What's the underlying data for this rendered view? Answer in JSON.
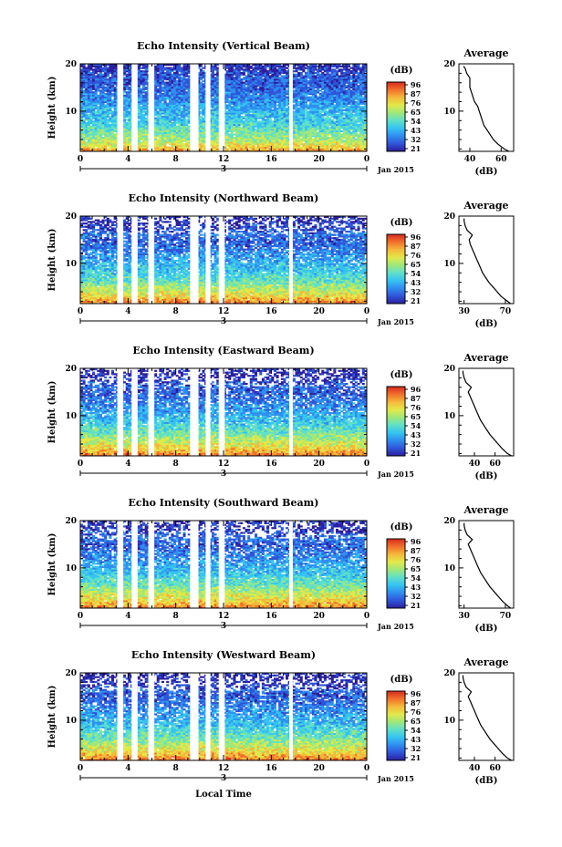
{
  "colors": {
    "colormap": [
      "#2b1f9e",
      "#2f55d8",
      "#2f8ef0",
      "#35c3f2",
      "#5fe0c8",
      "#9fe87a",
      "#e3e849",
      "#f5b83a",
      "#f1702a",
      "#d62a1e"
    ],
    "data_gap": "#ffffff",
    "profile_line": "#000000"
  },
  "shared": {
    "x_label": "Local Time",
    "date_label": "Jan 2015",
    "day_label": "3",
    "y_label": "Height (km)",
    "average_title": "Average",
    "profile_x_label": "(dB)",
    "colorbar_label": "(dB)",
    "colorbar_ticks": [
      "96",
      "87",
      "76",
      "65",
      "54",
      "43",
      "32",
      "21"
    ]
  },
  "chart_data": [
    {
      "type": "heatmap",
      "title": "Echo Intensity (Vertical Beam)",
      "xlabel": "",
      "ylabel": "Height (km)",
      "x_range": [
        0,
        24
      ],
      "x_ticks": [
        "0",
        "4",
        "8",
        "12",
        "16",
        "20",
        "0"
      ],
      "y_range": [
        1.5,
        20
      ],
      "y_ticks": [
        "10",
        "20"
      ],
      "colorbar": {
        "label": "(dB)",
        "range": [
          21,
          96
        ],
        "ticks": [
          "96",
          "87",
          "76",
          "65",
          "54",
          "43",
          "32",
          "21"
        ]
      },
      "gaps_hours": [
        [
          3.1,
          3.6
        ],
        [
          4.3,
          4.8
        ],
        [
          5.7,
          6.2
        ],
        [
          9.2,
          9.9
        ],
        [
          10.5,
          10.9
        ],
        [
          11.6,
          12.1
        ],
        [
          17.5,
          17.8
        ]
      ],
      "profile": {
        "title": "Average",
        "xlabel": "(dB)",
        "x_range": [
          33,
          68
        ],
        "x_ticks": [
          "40",
          "60"
        ],
        "y_ticks": [
          "10",
          "20"
        ],
        "height_km": [
          1.5,
          2,
          3,
          4,
          5,
          6,
          7,
          8,
          9,
          10,
          11,
          12,
          13,
          14,
          15,
          16,
          17,
          18,
          19,
          19.5
        ],
        "mean_db": [
          65,
          62,
          58,
          55,
          53,
          51,
          49,
          48,
          47,
          46,
          45,
          43,
          42,
          41,
          40,
          40,
          40,
          38,
          37,
          36
        ]
      }
    },
    {
      "type": "heatmap",
      "title": "Echo Intensity (Northward Beam)",
      "xlabel": "",
      "ylabel": "Height (km)",
      "x_range": [
        0,
        24
      ],
      "x_ticks": [
        "0",
        "4",
        "8",
        "12",
        "16",
        "20",
        "0"
      ],
      "y_range": [
        1.5,
        20
      ],
      "y_ticks": [
        "10",
        "20"
      ],
      "colorbar": {
        "label": "(dB)",
        "range": [
          21,
          96
        ],
        "ticks": [
          "96",
          "87",
          "76",
          "65",
          "54",
          "43",
          "32",
          "21"
        ]
      },
      "gaps_hours": [
        [
          3.1,
          3.6
        ],
        [
          4.3,
          4.8
        ],
        [
          5.7,
          6.2
        ],
        [
          9.2,
          9.9
        ],
        [
          10.5,
          10.9
        ],
        [
          11.6,
          12.1
        ],
        [
          17.5,
          17.8
        ]
      ],
      "profile": {
        "title": "Average",
        "xlabel": "(dB)",
        "x_range": [
          25,
          78
        ],
        "x_ticks": [
          "30",
          "70"
        ],
        "y_ticks": [
          "10",
          "20"
        ],
        "height_km": [
          1.5,
          2,
          3,
          4,
          5,
          6,
          7,
          8,
          9,
          10,
          11,
          12,
          13,
          14,
          15,
          16,
          17,
          18,
          19,
          19.5
        ],
        "mean_db": [
          75,
          72,
          66,
          62,
          58,
          54,
          51,
          48,
          46,
          44,
          42,
          40,
          38,
          36,
          35,
          38,
          33,
          31,
          30,
          30
        ]
      }
    },
    {
      "type": "heatmap",
      "title": "Echo Intensity (Eastward Beam)",
      "xlabel": "",
      "ylabel": "Height (km)",
      "x_range": [
        0,
        24
      ],
      "x_ticks": [
        "0",
        "4",
        "8",
        "12",
        "16",
        "20",
        "0"
      ],
      "y_range": [
        1.5,
        20
      ],
      "y_ticks": [
        "10",
        "20"
      ],
      "colorbar": {
        "label": "(dB)",
        "range": [
          21,
          96
        ],
        "ticks": [
          "96",
          "87",
          "76",
          "65",
          "54",
          "43",
          "32",
          "21"
        ]
      },
      "gaps_hours": [
        [
          3.1,
          3.6
        ],
        [
          4.3,
          4.8
        ],
        [
          5.7,
          6.2
        ],
        [
          9.2,
          9.9
        ],
        [
          10.5,
          10.9
        ],
        [
          11.6,
          12.1
        ],
        [
          17.5,
          17.8
        ]
      ],
      "profile": {
        "title": "Average",
        "xlabel": "(dB)",
        "x_range": [
          25,
          78
        ],
        "x_ticks": [
          "40",
          "60"
        ],
        "y_ticks": [
          "10",
          "20"
        ],
        "height_km": [
          1.5,
          2,
          3,
          4,
          5,
          6,
          7,
          8,
          9,
          10,
          11,
          12,
          13,
          14,
          15,
          16,
          17,
          18,
          19,
          19.5
        ],
        "mean_db": [
          76,
          72,
          67,
          63,
          59,
          55,
          52,
          49,
          46,
          44,
          42,
          40,
          38,
          36,
          34,
          37,
          32,
          30,
          29,
          29
        ]
      }
    },
    {
      "type": "heatmap",
      "title": "Echo Intensity (Southward Beam)",
      "xlabel": "",
      "ylabel": "Height (km)",
      "x_range": [
        0,
        24
      ],
      "x_ticks": [
        "0",
        "4",
        "8",
        "12",
        "16",
        "20",
        "0"
      ],
      "y_range": [
        1.5,
        20
      ],
      "y_ticks": [
        "10",
        "20"
      ],
      "colorbar": {
        "label": "(dB)",
        "range": [
          21,
          96
        ],
        "ticks": [
          "96",
          "87",
          "76",
          "65",
          "54",
          "43",
          "32",
          "21"
        ]
      },
      "gaps_hours": [
        [
          3.1,
          3.6
        ],
        [
          4.3,
          4.8
        ],
        [
          5.7,
          6.2
        ],
        [
          9.2,
          9.9
        ],
        [
          10.5,
          10.9
        ],
        [
          11.6,
          12.1
        ],
        [
          17.5,
          17.8
        ]
      ],
      "profile": {
        "title": "Average",
        "xlabel": "(dB)",
        "x_range": [
          25,
          78
        ],
        "x_ticks": [
          "30",
          "70"
        ],
        "y_ticks": [
          "10",
          "20"
        ],
        "height_km": [
          1.5,
          2,
          3,
          4,
          5,
          6,
          7,
          8,
          9,
          10,
          11,
          12,
          13,
          14,
          15,
          16,
          17,
          18,
          19,
          19.5
        ],
        "mean_db": [
          75,
          72,
          67,
          63,
          59,
          55,
          52,
          49,
          46,
          44,
          42,
          40,
          38,
          36,
          34,
          38,
          33,
          31,
          30,
          30
        ]
      }
    },
    {
      "type": "heatmap",
      "title": "Echo Intensity (Westward Beam)",
      "xlabel": "Local Time",
      "ylabel": "Height (km)",
      "x_range": [
        0,
        24
      ],
      "x_ticks": [
        "0",
        "4",
        "8",
        "12",
        "16",
        "20",
        "0"
      ],
      "y_range": [
        1.5,
        20
      ],
      "y_ticks": [
        "10",
        "20"
      ],
      "colorbar": {
        "label": "(dB)",
        "range": [
          21,
          96
        ],
        "ticks": [
          "96",
          "87",
          "76",
          "65",
          "54",
          "43",
          "32",
          "21"
        ]
      },
      "gaps_hours": [
        [
          3.1,
          3.6
        ],
        [
          4.3,
          4.8
        ],
        [
          5.7,
          6.2
        ],
        [
          9.2,
          9.9
        ],
        [
          10.5,
          10.9
        ],
        [
          11.6,
          12.1
        ],
        [
          17.5,
          17.8
        ]
      ],
      "profile": {
        "title": "Average",
        "xlabel": "(dB)",
        "x_range": [
          25,
          78
        ],
        "x_ticks": [
          "40",
          "60"
        ],
        "y_ticks": [
          "10",
          "20"
        ],
        "height_km": [
          1.5,
          2,
          3,
          4,
          5,
          6,
          7,
          8,
          9,
          10,
          11,
          12,
          13,
          14,
          15,
          16,
          17,
          18,
          19,
          19.5
        ],
        "mean_db": [
          76,
          72,
          67,
          63,
          59,
          55,
          52,
          49,
          46,
          44,
          42,
          40,
          38,
          36,
          34,
          37,
          32,
          30,
          29,
          29
        ]
      }
    }
  ]
}
